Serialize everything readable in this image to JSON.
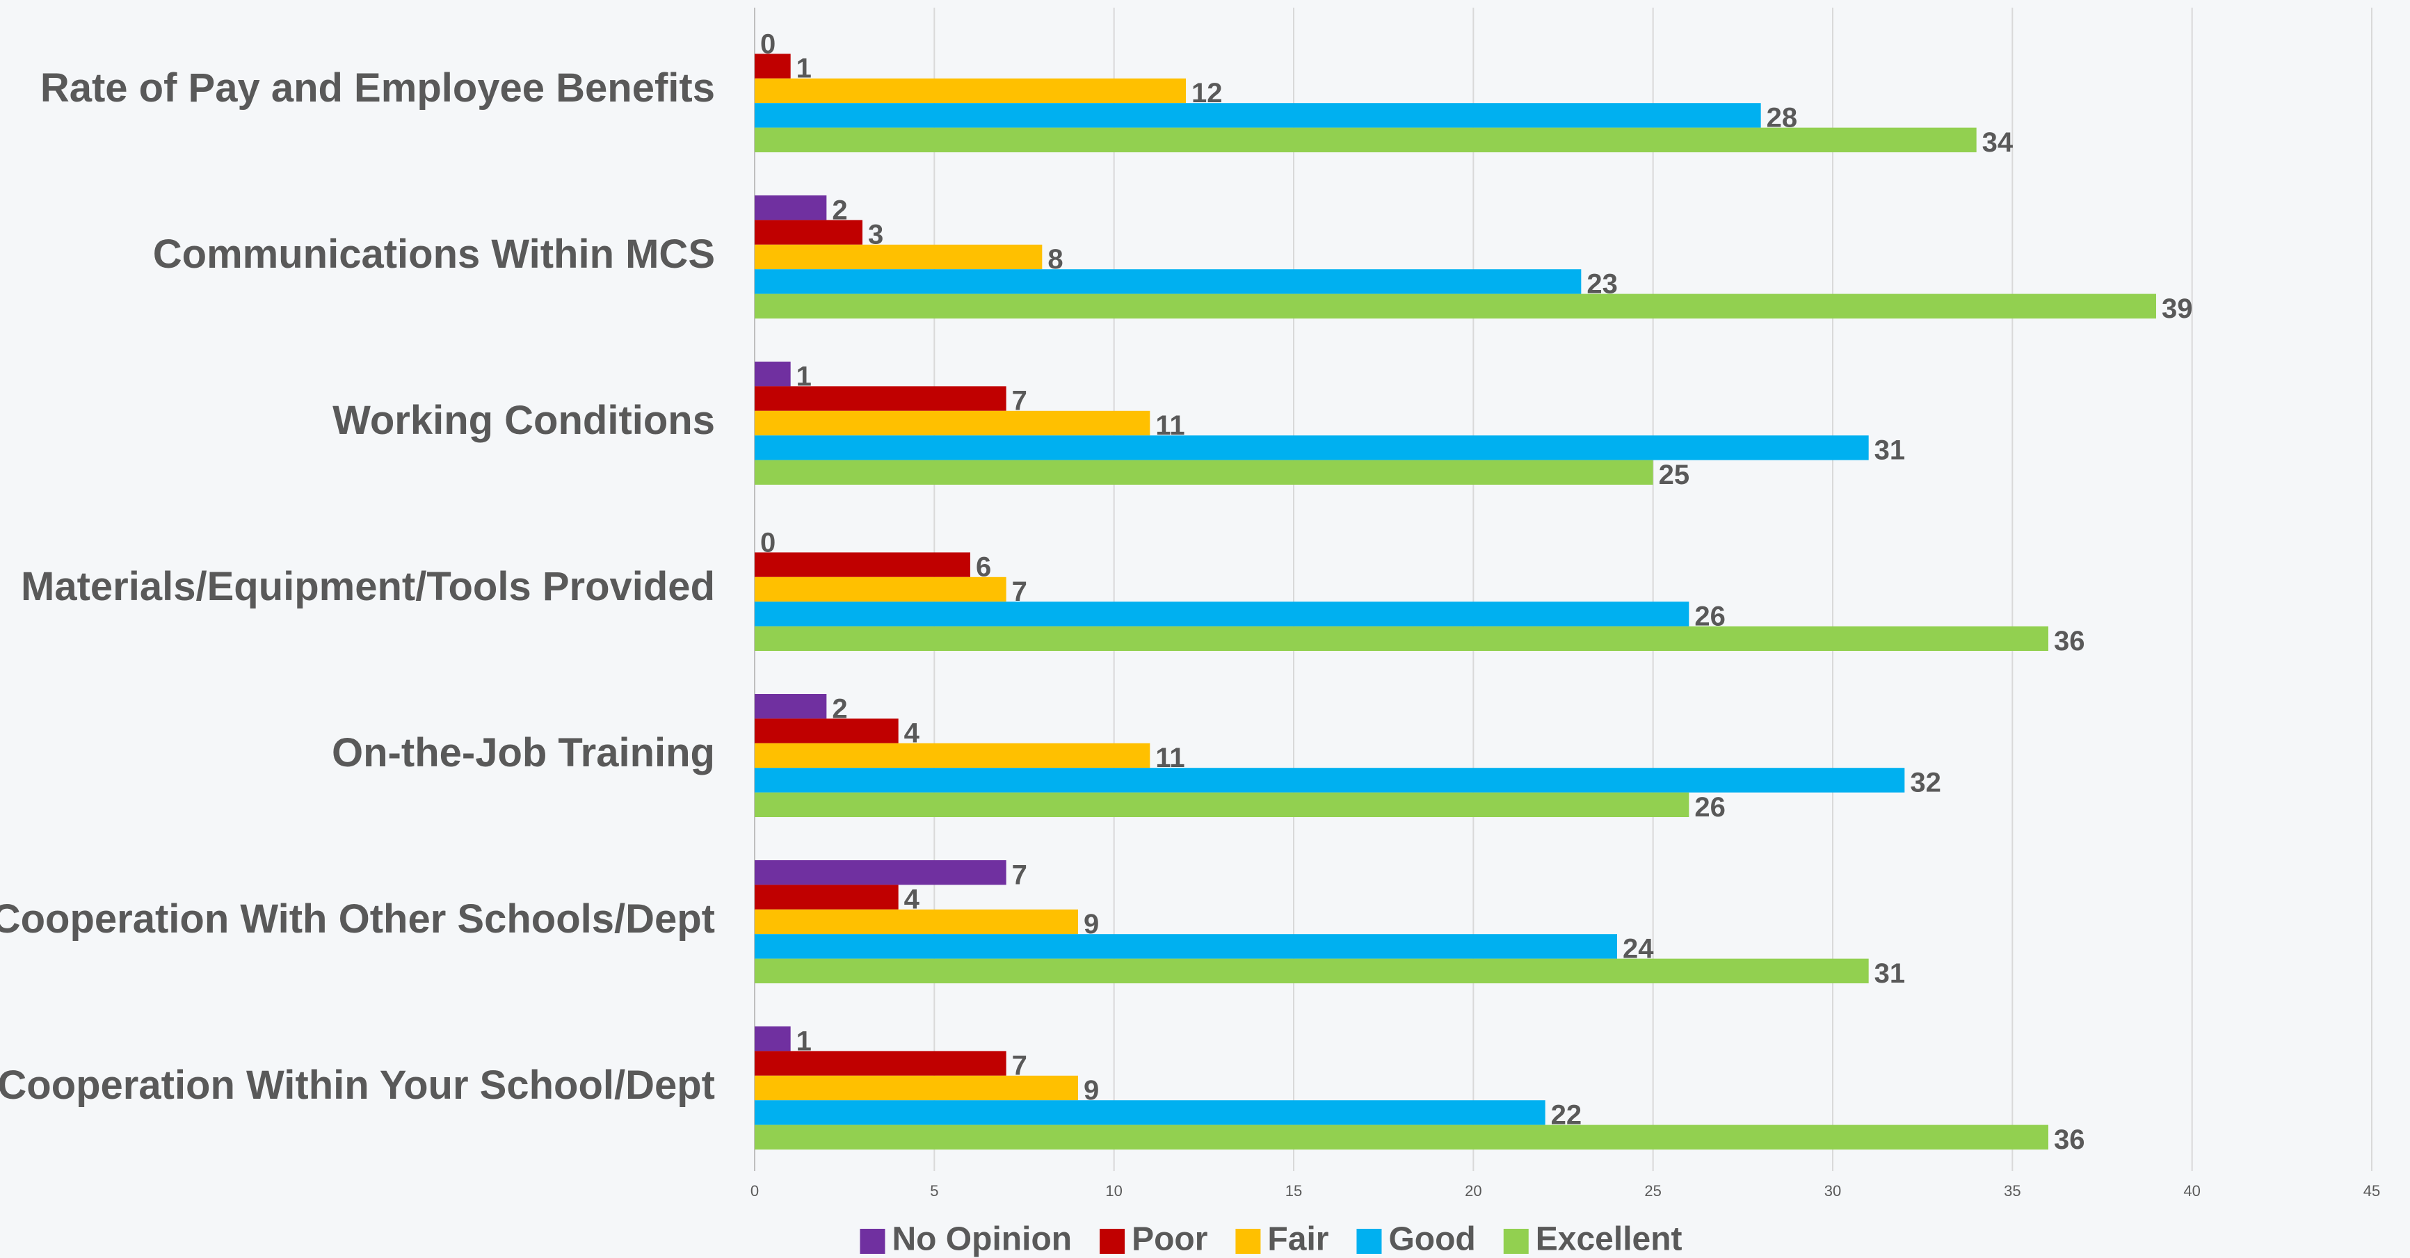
{
  "chart_data": {
    "type": "hbar",
    "categories": [
      "Rate of Pay and Employee Benefits",
      "Communications Within MCS",
      "Working Conditions",
      "Materials/Equipment/Tools Provided",
      "On-the-Job Training",
      "Cooperation With Other Schools/Dept",
      "Cooperation Within Your School/Dept"
    ],
    "series": [
      {
        "name": "No Opinion",
        "color": "#7030a0",
        "values": [
          0,
          2,
          1,
          0,
          2,
          7,
          1
        ]
      },
      {
        "name": "Poor",
        "color": "#c00000",
        "values": [
          1,
          3,
          7,
          6,
          4,
          4,
          7
        ]
      },
      {
        "name": "Fair",
        "color": "#ffc000",
        "values": [
          12,
          8,
          11,
          7,
          11,
          9,
          9
        ]
      },
      {
        "name": "Good",
        "color": "#00b0f0",
        "values": [
          28,
          23,
          31,
          26,
          32,
          24,
          22
        ]
      },
      {
        "name": "Excellent",
        "color": "#92d050",
        "values": [
          34,
          39,
          25,
          36,
          26,
          31,
          36
        ]
      }
    ],
    "xlim": [
      0,
      45
    ],
    "xticks": [
      0,
      5,
      10,
      15,
      20,
      25,
      30,
      35,
      40,
      45
    ],
    "grid": true,
    "legend": "bottom"
  }
}
